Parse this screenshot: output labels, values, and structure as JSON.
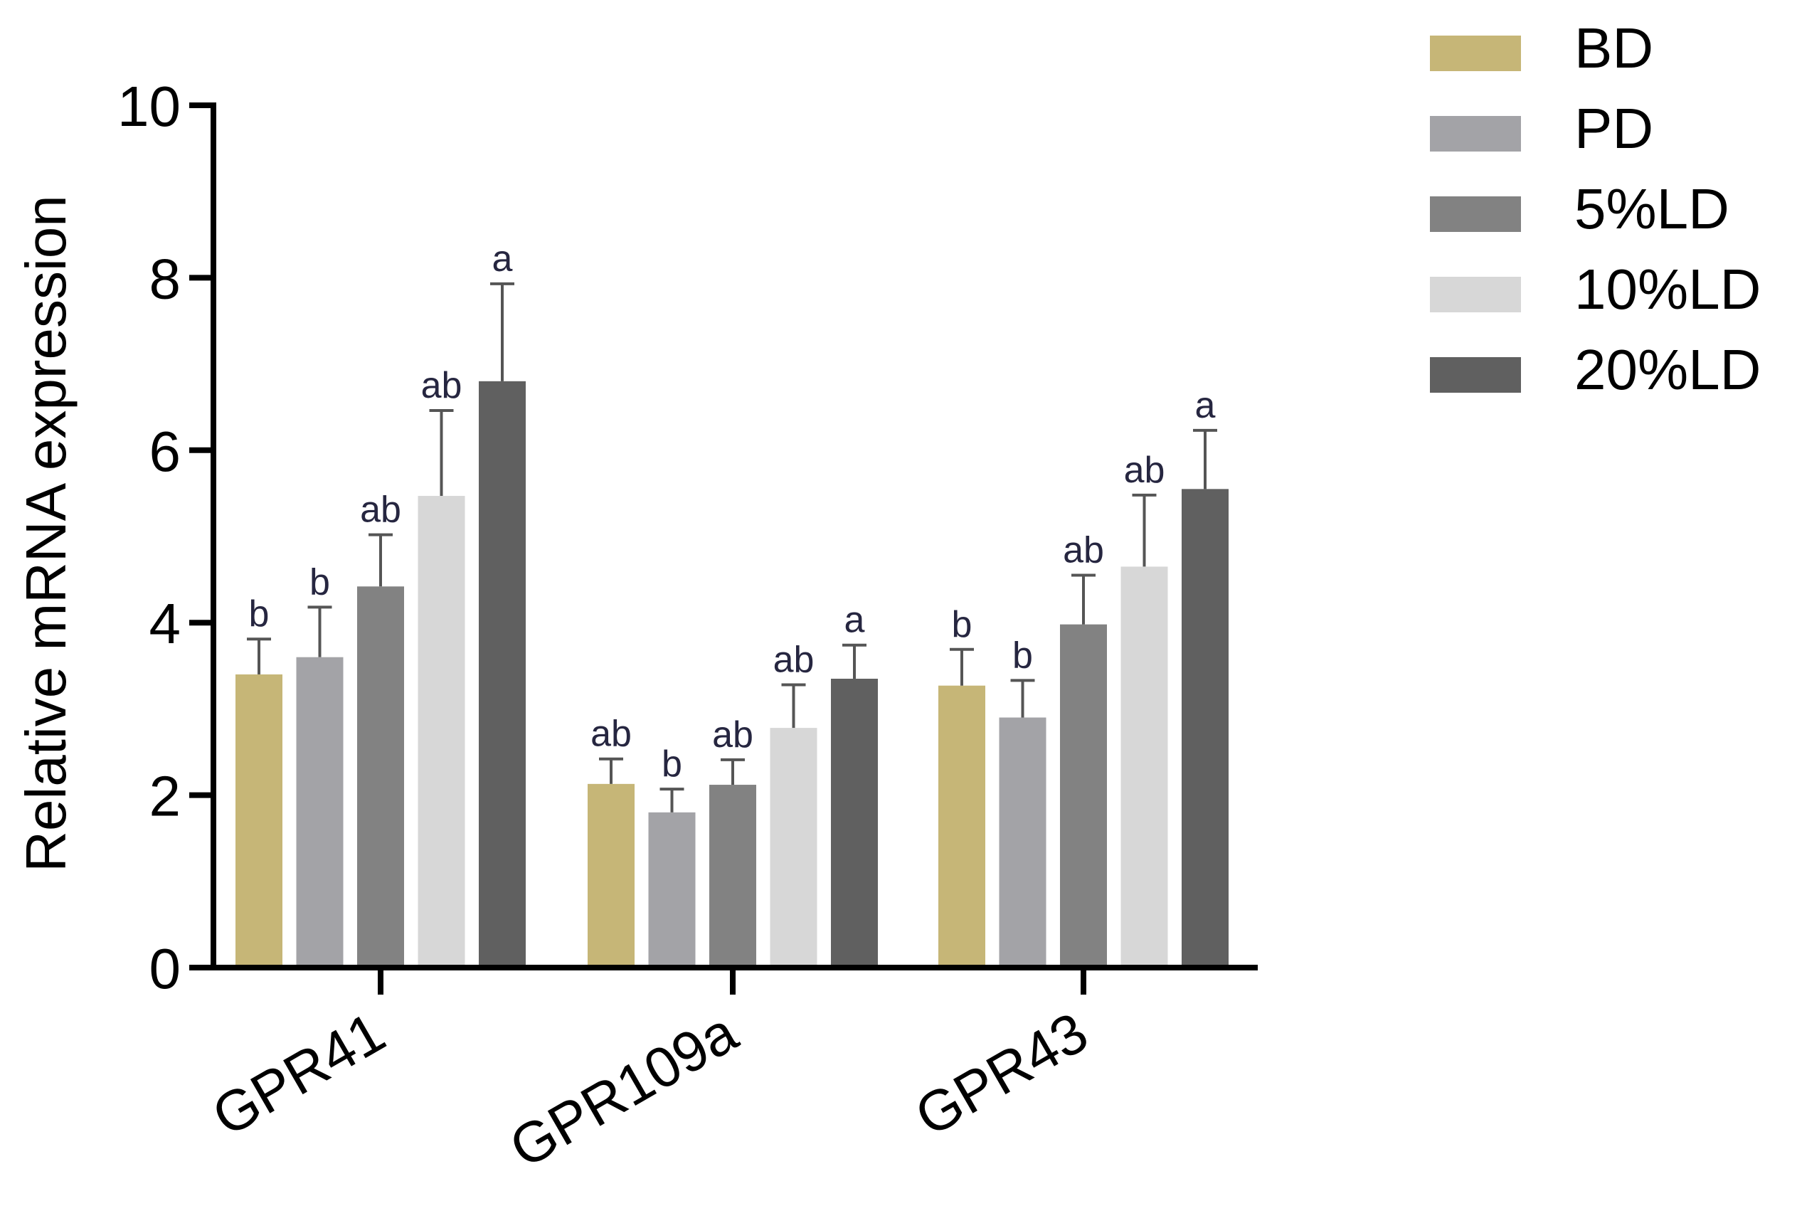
{
  "chart_data": {
    "type": "bar",
    "ylabel": "Relative mRNA expression",
    "ylim": [
      0,
      10
    ],
    "yticks": [
      "0",
      "2",
      "4",
      "6",
      "8",
      "10"
    ],
    "categories": [
      "GPR41",
      "GPR109a",
      "GPR43"
    ],
    "legend_position": "top-right",
    "grid": false,
    "series": [
      {
        "name": "BD",
        "color": "#c6b677",
        "values": [
          3.4,
          2.13,
          3.27
        ],
        "errors": [
          0.41,
          0.29,
          0.42
        ],
        "letters": [
          "b",
          "ab",
          "b"
        ]
      },
      {
        "name": "PD",
        "color": "#a3a3a7",
        "values": [
          3.6,
          1.8,
          2.9
        ],
        "errors": [
          0.58,
          0.27,
          0.43
        ],
        "letters": [
          "b",
          "b",
          "b"
        ]
      },
      {
        "name": "5%LD",
        "color": "#828282",
        "values": [
          4.42,
          2.12,
          3.98
        ],
        "errors": [
          0.6,
          0.29,
          0.57
        ],
        "letters": [
          "ab",
          "ab",
          "ab"
        ]
      },
      {
        "name": "10%LD",
        "color": "#d7d7d7",
        "values": [
          5.47,
          2.78,
          4.65
        ],
        "errors": [
          0.99,
          0.5,
          0.83
        ],
        "letters": [
          "ab",
          "ab",
          "ab"
        ]
      },
      {
        "name": "20%LD",
        "color": "#606060",
        "values": [
          6.8,
          3.35,
          5.55
        ],
        "errors": [
          1.13,
          0.39,
          0.68
        ],
        "letters": [
          "a",
          "a",
          "a"
        ]
      }
    ]
  }
}
